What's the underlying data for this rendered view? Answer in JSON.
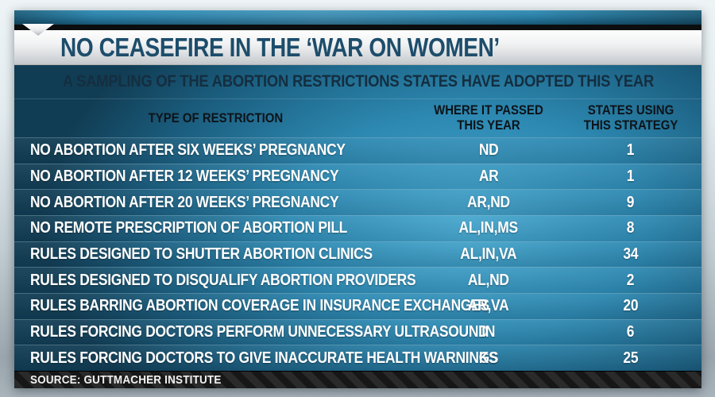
{
  "palette": {
    "board_blue_bright": "#47a7ce",
    "board_blue_mid": "#2d89b2",
    "board_blue_dark": "#113d54",
    "title_text": "#1d4d6b",
    "subtitle_text": "#142e40",
    "header_text": "#0d1318",
    "row_text": "#ffffff",
    "titlebar_silver": "#e8eaec",
    "source_bar": "#1f1f1f"
  },
  "masthead": {
    "title": "NO CEASEFIRE IN THE ‘WAR ON WOMEN’",
    "subtitle": "A SAMPLING OF THE ABORTION RESTRICTIONS STATES HAVE ADOPTED THIS YEAR"
  },
  "table": {
    "col1_header": "TYPE OF RESTRICTION",
    "col2_header_line1": "WHERE IT PASSED",
    "col2_header_line2": "THIS YEAR",
    "col3_header_line1": "STATES USING",
    "col3_header_line2": "THIS STRATEGY",
    "rows": [
      {
        "restriction": "NO ABORTION AFTER SIX WEEKS’ PREGNANCY",
        "where": "ND",
        "count": "1"
      },
      {
        "restriction": "NO ABORTION AFTER 12 WEEKS’ PREGNANCY",
        "where": "AR",
        "count": "1"
      },
      {
        "restriction": "NO ABORTION AFTER 20 WEEKS’ PREGNANCY",
        "where": "AR,ND",
        "count": "9"
      },
      {
        "restriction": "NO REMOTE PRESCRIPTION OF ABORTION PILL",
        "where": "AL,IN,MS",
        "count": "8"
      },
      {
        "restriction": "RULES DESIGNED TO SHUTTER ABORTION CLINICS",
        "where": "AL,IN,VA",
        "count": "34"
      },
      {
        "restriction": "RULES DESIGNED TO DISQUALIFY ABORTION PROVIDERS",
        "where": "AL,ND",
        "count": "2"
      },
      {
        "restriction": "RULES BARRING ABORTION COVERAGE IN INSURANCE EXCHANGES",
        "where": "AR,VA",
        "count": "20"
      },
      {
        "restriction": "RULES FORCING DOCTORS PERFORM UNNECESSARY ULTRASOUND",
        "where": "IN",
        "count": "6"
      },
      {
        "restriction": "RULES FORCING DOCTORS TO GIVE INACCURATE HEALTH WARNINGS",
        "where": "KS",
        "count": "25"
      }
    ]
  },
  "source": {
    "label": "SOURCE: GUTTMACHER INSTITUTE"
  },
  "chart_data": {
    "type": "table",
    "title": "NO CEASEFIRE IN THE ‘WAR ON WOMEN’",
    "subtitle": "A SAMPLING OF THE ABORTION RESTRICTIONS STATES HAVE ADOPTED THIS YEAR",
    "columns": [
      "TYPE OF RESTRICTION",
      "WHERE IT PASSED THIS YEAR",
      "STATES USING THIS STRATEGY"
    ],
    "rows": [
      [
        "NO ABORTION AFTER SIX WEEKS’ PREGNANCY",
        "ND",
        1
      ],
      [
        "NO ABORTION AFTER 12 WEEKS’ PREGNANCY",
        "AR",
        1
      ],
      [
        "NO ABORTION AFTER 20 WEEKS’ PREGNANCY",
        "AR,ND",
        9
      ],
      [
        "NO REMOTE PRESCRIPTION OF ABORTION PILL",
        "AL,IN,MS",
        8
      ],
      [
        "RULES DESIGNED TO SHUTTER ABORTION CLINICS",
        "AL,IN,VA",
        34
      ],
      [
        "RULES DESIGNED TO DISQUALIFY ABORTION PROVIDERS",
        "AL,ND",
        2
      ],
      [
        "RULES BARRING ABORTION COVERAGE IN INSURANCE EXCHANGES",
        "AR,VA",
        20
      ],
      [
        "RULES FORCING DOCTORS PERFORM UNNECESSARY ULTRASOUND",
        "IN",
        6
      ],
      [
        "RULES FORCING DOCTORS TO GIVE INACCURATE HEALTH WARNINGS",
        "KS",
        25
      ]
    ],
    "source": "GUTTMACHER INSTITUTE"
  }
}
